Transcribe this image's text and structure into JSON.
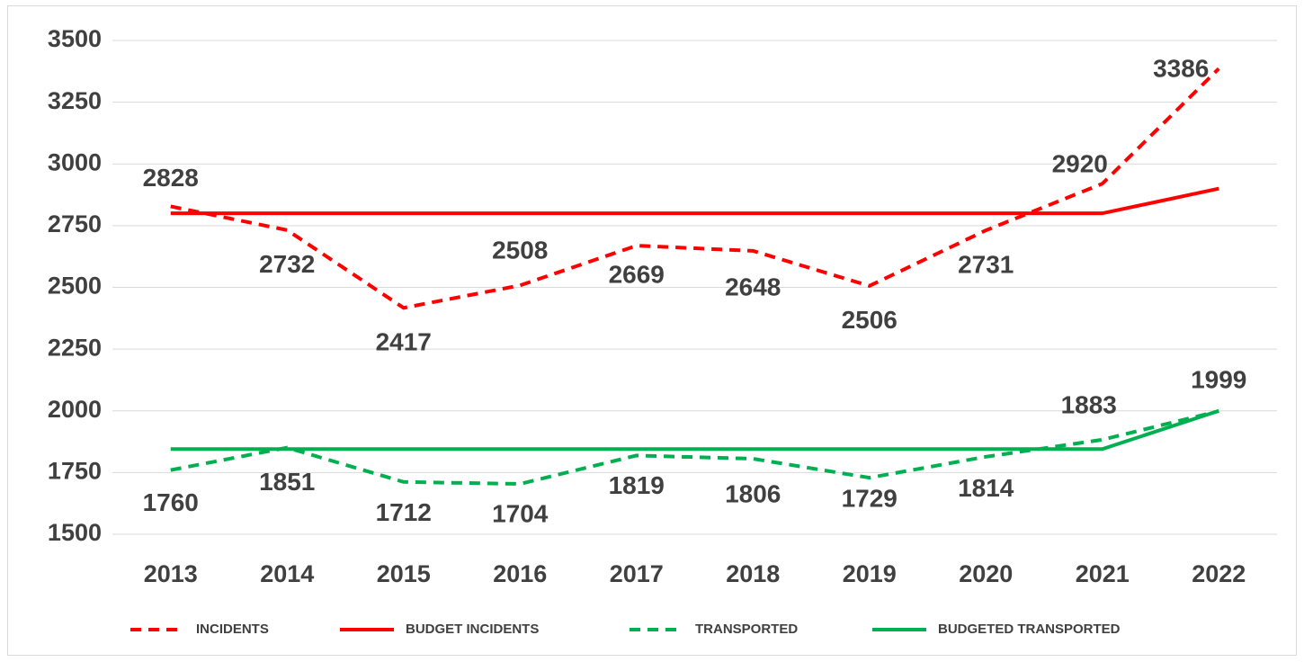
{
  "chart_data": {
    "type": "line",
    "categories": [
      "2013",
      "2014",
      "2015",
      "2016",
      "2017",
      "2018",
      "2019",
      "2020",
      "2021",
      "2022"
    ],
    "series": [
      {
        "name": "INCIDENTS",
        "color": "#ff0000",
        "line_style": "dashed",
        "data_labels": true,
        "values": [
          2828,
          2732,
          2417,
          2508,
          2669,
          2648,
          2506,
          2731,
          2920,
          3386
        ]
      },
      {
        "name": "BUDGET INCIDENTS",
        "color": "#ff0000",
        "line_style": "solid",
        "data_labels": false,
        "values": [
          2800,
          2800,
          2800,
          2800,
          2800,
          2800,
          2800,
          2800,
          2800,
          2900
        ]
      },
      {
        "name": "TRANSPORTED",
        "color": "#00b050",
        "line_style": "dashed",
        "data_labels": true,
        "values": [
          1760,
          1851,
          1712,
          1704,
          1819,
          1806,
          1729,
          1814,
          1883,
          1999
        ]
      },
      {
        "name": "BUDGETED TRANSPORTED",
        "color": "#00b050",
        "line_style": "solid",
        "data_labels": false,
        "values": [
          1845,
          1845,
          1845,
          1845,
          1845,
          1845,
          1845,
          1845,
          1845,
          2000
        ]
      }
    ],
    "ylim": [
      1500,
      3500
    ],
    "yticks": [
      1500,
      1750,
      2000,
      2250,
      2500,
      2750,
      3000,
      3250,
      3500
    ],
    "grid": true,
    "legend": "bottom"
  }
}
